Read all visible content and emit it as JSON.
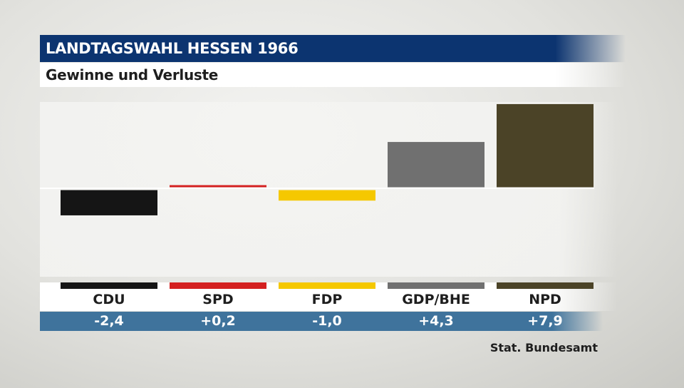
{
  "header": {
    "title": "LANDTAGSWAHL HESSEN 1966",
    "subtitle": "Gewinne und Verluste"
  },
  "source": "Stat. Bundesamt",
  "chart_data": {
    "type": "bar",
    "title": "LANDTAGSWAHL HESSEN 1966",
    "subtitle": "Gewinne und Verluste",
    "categories": [
      "CDU",
      "SPD",
      "FDP",
      "GDP/BHE",
      "NPD"
    ],
    "values": [
      -2.4,
      0.2,
      -1.0,
      4.3,
      7.9
    ],
    "value_labels": [
      "-2,4",
      "+0,2",
      "-1,0",
      "+4,3",
      "+7,9"
    ],
    "colors": [
      "#151515",
      "#d42020",
      "#f5c800",
      "#707070",
      "#4b4327"
    ],
    "ylim": [
      -8.4,
      8.2
    ],
    "xlabel": "",
    "ylabel": "",
    "grid": false,
    "legend": "none"
  }
}
